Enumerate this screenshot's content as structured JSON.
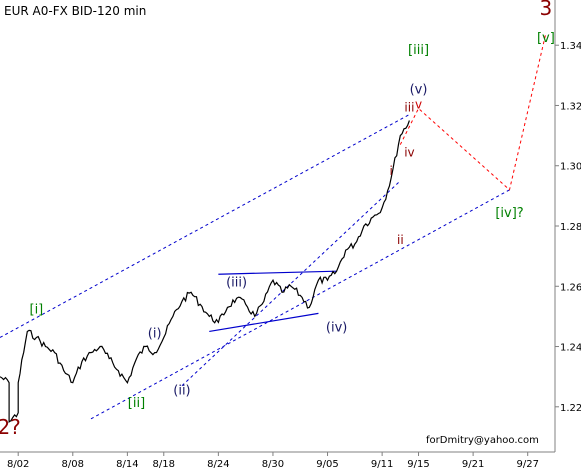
{
  "chart_data": {
    "type": "line",
    "title": "EUR A0-FX BID-120 min",
    "credit": "forDmitry@yahoo.com",
    "colors": {
      "price": "#000000",
      "axis": "#808080",
      "channel": "#0000cc",
      "forecast": "#ff0000",
      "wave_green": "#008000",
      "wave_navy": "#1a1a66",
      "wave_maroon": "#8b0000",
      "wave_red": "#cc0000"
    },
    "x_range": [
      "2008-07-31",
      "2008-09-30"
    ],
    "ylim": [
      1.205,
      1.355
    ],
    "y_ticks": [
      1.22,
      1.24,
      1.26,
      1.28,
      1.3,
      1.32,
      1.34
    ],
    "y_tick_labels": [
      "1.22",
      "1.24",
      "1.26",
      "1.28",
      "1.30",
      "1.32",
      "1.34"
    ],
    "x_ticks": [
      "2008-08-02",
      "2008-08-08",
      "2008-08-14",
      "2008-08-18",
      "2008-08-24",
      "2008-08-30",
      "2008-09-05",
      "2008-09-11",
      "2008-09-15",
      "2008-09-21",
      "2008-09-27"
    ],
    "x_tick_labels": [
      "8/02",
      "8/08",
      "8/14",
      "8/18",
      "8/24",
      "8/30",
      "9/05",
      "9/11",
      "9/15",
      "9/21",
      "9/27"
    ],
    "price": {
      "x": [
        "2008-07-31",
        "2008-08-01",
        "2008-08-01",
        "2008-08-02",
        "2008-08-02",
        "2008-08-03",
        "2008-08-04",
        "2008-08-05",
        "2008-08-06",
        "2008-08-07",
        "2008-08-08",
        "2008-08-09",
        "2008-08-10",
        "2008-08-11",
        "2008-08-12",
        "2008-08-13",
        "2008-08-14",
        "2008-08-15",
        "2008-08-16",
        "2008-08-17",
        "2008-08-18",
        "2008-08-19",
        "2008-08-20",
        "2008-08-21",
        "2008-08-22",
        "2008-08-23",
        "2008-08-24",
        "2008-08-25",
        "2008-08-26",
        "2008-08-27",
        "2008-08-28",
        "2008-08-29",
        "2008-08-30",
        "2008-08-31",
        "2008-09-01",
        "2008-09-02",
        "2008-09-03",
        "2008-09-04",
        "2008-09-05",
        "2008-09-06",
        "2008-09-07",
        "2008-09-08",
        "2008-09-09",
        "2008-09-10",
        "2008-09-11",
        "2008-09-12",
        "2008-09-13",
        "2008-09-14"
      ],
      "y": [
        1.23,
        1.228,
        1.215,
        1.218,
        1.228,
        1.245,
        1.243,
        1.24,
        1.238,
        1.232,
        1.228,
        1.235,
        1.238,
        1.24,
        1.236,
        1.232,
        1.228,
        1.236,
        1.24,
        1.238,
        1.243,
        1.25,
        1.255,
        1.258,
        1.254,
        1.25,
        1.248,
        1.253,
        1.256,
        1.254,
        1.25,
        1.255,
        1.262,
        1.258,
        1.26,
        1.257,
        1.253,
        1.262,
        1.262,
        1.265,
        1.272,
        1.274,
        1.28,
        1.283,
        1.286,
        1.296,
        1.31,
        1.315
      ]
    },
    "channel_lines": [
      {
        "x": [
          "2008-07-31",
          "2008-09-14"
        ],
        "y": [
          1.243,
          1.317
        ]
      },
      {
        "x": [
          "2008-08-10",
          "2008-09-25"
        ],
        "y": [
          1.216,
          1.292
        ]
      },
      {
        "x": [
          "2008-08-20",
          "2008-09-13"
        ],
        "y": [
          1.227,
          1.295
        ]
      }
    ],
    "triangle_lines": [
      {
        "x": [
          "2008-08-24",
          "2008-09-06"
        ],
        "y": [
          1.264,
          1.265
        ]
      },
      {
        "x": [
          "2008-08-23",
          "2008-09-04"
        ],
        "y": [
          1.245,
          1.251
        ]
      }
    ],
    "forecast_path": {
      "x": [
        "2008-09-13",
        "2008-09-15",
        "2008-09-25",
        "2008-09-29"
      ],
      "y": [
        1.307,
        1.319,
        1.292,
        1.344
      ]
    },
    "wave_labels": [
      {
        "text": "3",
        "x": "2008-09-29",
        "y": 1.35,
        "color": "wave_maroon",
        "size": "big"
      },
      {
        "text": "2?",
        "x": "2008-08-01",
        "y": 1.211,
        "color": "wave_maroon",
        "size": "big"
      },
      {
        "text": "[i]",
        "x": "2008-08-04",
        "y": 1.251,
        "color": "wave_green",
        "size": "mid"
      },
      {
        "text": "[ii]",
        "x": "2008-08-15",
        "y": 1.22,
        "color": "wave_green",
        "size": "mid"
      },
      {
        "text": "[iii]",
        "x": "2008-09-15",
        "y": 1.337,
        "color": "wave_green",
        "size": "mid"
      },
      {
        "text": "[iv]?",
        "x": "2008-09-25",
        "y": 1.283,
        "color": "wave_green",
        "size": "mid"
      },
      {
        "text": "[v]",
        "x": "2008-09-29",
        "y": 1.341,
        "color": "wave_green",
        "size": "mid"
      },
      {
        "text": "(i)",
        "x": "2008-08-17",
        "y": 1.243,
        "color": "wave_navy",
        "size": "mid"
      },
      {
        "text": "(ii)",
        "x": "2008-08-20",
        "y": 1.224,
        "color": "wave_navy",
        "size": "mid"
      },
      {
        "text": "(iii)",
        "x": "2008-08-26",
        "y": 1.26,
        "color": "wave_navy",
        "size": "mid"
      },
      {
        "text": "(iv)",
        "x": "2008-09-06",
        "y": 1.245,
        "color": "wave_navy",
        "size": "mid"
      },
      {
        "text": "(v)",
        "x": "2008-09-15",
        "y": 1.324,
        "color": "wave_navy",
        "size": "mid"
      },
      {
        "text": "iii",
        "x": "2008-09-14",
        "y": 1.318,
        "color": "wave_maroon",
        "size": "small"
      },
      {
        "text": "iv",
        "x": "2008-09-14",
        "y": 1.303,
        "color": "wave_maroon",
        "size": "small"
      },
      {
        "text": "v",
        "x": "2008-09-15",
        "y": 1.319,
        "color": "wave_red",
        "size": "small"
      },
      {
        "text": "i",
        "x": "2008-09-12",
        "y": 1.297,
        "color": "wave_maroon",
        "size": "small"
      },
      {
        "text": "ii",
        "x": "2008-09-13",
        "y": 1.274,
        "color": "wave_maroon",
        "size": "small"
      }
    ]
  }
}
